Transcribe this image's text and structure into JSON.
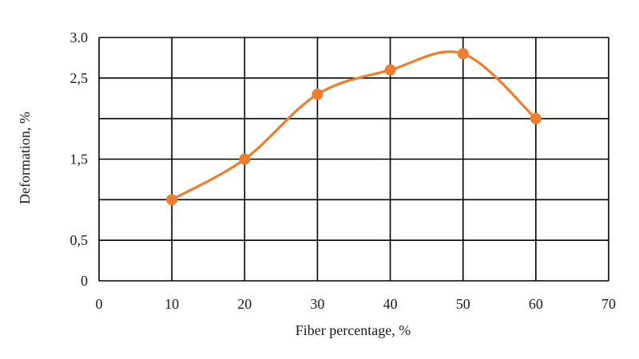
{
  "chart_data": {
    "type": "line",
    "xlabel": "Fiber percentage, %",
    "ylabel": "Deformation, %",
    "xlim": [
      0,
      70
    ],
    "ylim": [
      0,
      3.0
    ],
    "x_ticks": [
      0,
      10,
      20,
      30,
      40,
      50,
      60,
      70
    ],
    "x_tick_labels": [
      "0",
      "10",
      "20",
      "30",
      "40",
      "50",
      "60",
      "70"
    ],
    "y_ticks": [
      0,
      0.5,
      1.0,
      1.5,
      2.0,
      2.5,
      3.0
    ],
    "y_tick_labels": [
      "0",
      "0,5",
      "",
      "1,5",
      "",
      "2,5",
      "3.0"
    ],
    "grid": true,
    "smooth": true,
    "series": [
      {
        "color": "#ED7D31",
        "x": [
          10,
          20,
          30,
          40,
          50,
          60
        ],
        "y": [
          1.0,
          1.5,
          2.3,
          2.6,
          2.8,
          2.0
        ]
      }
    ]
  }
}
